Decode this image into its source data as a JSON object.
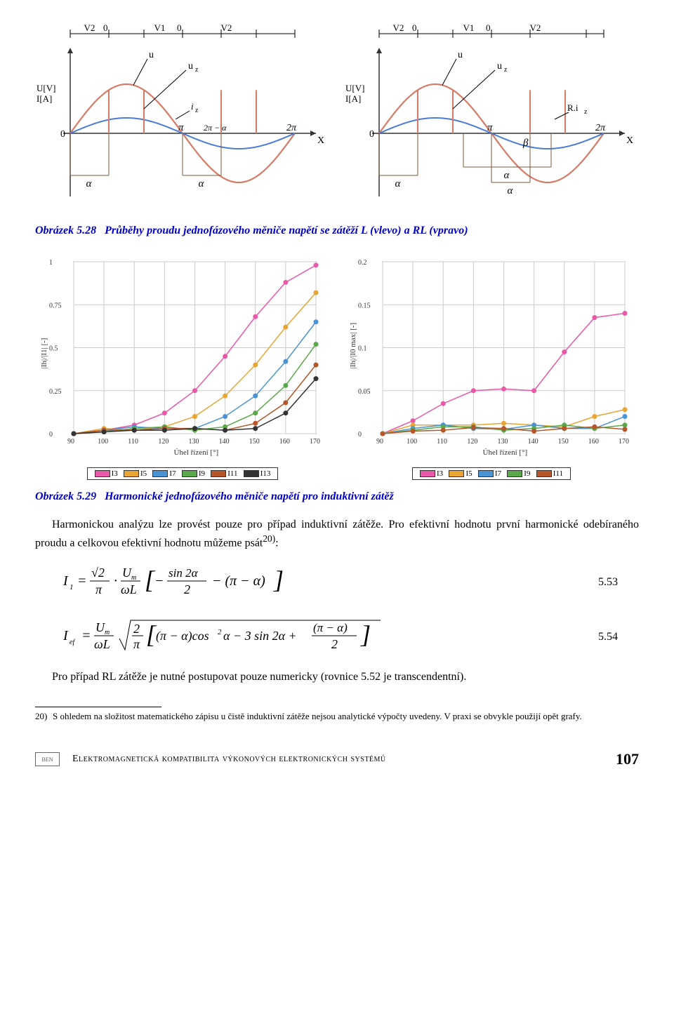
{
  "waveform": {
    "axis_x": "X",
    "axis_y": "U[V]\nI[A]",
    "zero": "0",
    "u_label": "u",
    "uz_label": "u_z",
    "iz_label": "i_z",
    "Riz_label": "R.i_z",
    "alpha": "α",
    "beta": "β",
    "pi": "π",
    "two_pi": "2π",
    "two_pi_minus_alpha": "2π − α",
    "V1": "V1",
    "V2": "V2",
    "line_voltage_color": "#d77b66",
    "line_current_color": "#4a7bd6",
    "axis_color": "#333333",
    "bracket_color": "#7a5a3a"
  },
  "caption528": {
    "label": "Obrázek 5.28",
    "text": "Průběhy proudu jednofázového měniče napětí se zátěží L (vlevo) a RL (vpravo)"
  },
  "harmonic_chart": {
    "type": "line-scatter",
    "xlabel": "Úhel řízení [°]",
    "ylabel_left": "|Ih|/|I1| [-]",
    "ylabel_right": "|Ih|/|I0 max| [-]",
    "xlim": [
      90,
      170
    ],
    "xticks": [
      90,
      100,
      110,
      120,
      130,
      140,
      150,
      160,
      170
    ],
    "left": {
      "ylim": [
        0,
        1
      ],
      "yticks": [
        0,
        0.25,
        0.5,
        0.75,
        1
      ]
    },
    "right": {
      "ylim": [
        0,
        0.2
      ],
      "yticks": [
        0,
        0.05,
        0.1,
        0.15,
        0.2
      ]
    },
    "series_colors": {
      "I3": "#e85aa8",
      "I5": "#e8a534",
      "I7": "#4a94d6",
      "I9": "#5aa84a",
      "I11": "#b5572a",
      "I13": "#333333"
    },
    "legend_left": [
      "I3",
      "I5",
      "I7",
      "I9",
      "I11",
      "I13"
    ],
    "legend_right": [
      "I3",
      "I5",
      "I7",
      "I9",
      "I11"
    ],
    "grid_color": "#cccccc",
    "background": "#ffffff",
    "left_data": {
      "x": [
        90,
        100,
        110,
        120,
        130,
        140,
        150,
        160,
        170
      ],
      "I3": [
        0.0,
        0.02,
        0.05,
        0.12,
        0.25,
        0.45,
        0.68,
        0.88,
        0.98
      ],
      "I5": [
        0.0,
        0.03,
        0.02,
        0.04,
        0.1,
        0.22,
        0.4,
        0.62,
        0.82
      ],
      "I7": [
        0.0,
        0.02,
        0.04,
        0.03,
        0.03,
        0.1,
        0.22,
        0.42,
        0.65
      ],
      "I9": [
        0.0,
        0.01,
        0.03,
        0.04,
        0.02,
        0.04,
        0.12,
        0.28,
        0.52
      ],
      "I11": [
        0.0,
        0.02,
        0.02,
        0.03,
        0.03,
        0.02,
        0.06,
        0.18,
        0.4
      ],
      "I13": [
        0.0,
        0.01,
        0.02,
        0.02,
        0.03,
        0.02,
        0.03,
        0.12,
        0.32
      ]
    },
    "right_data": {
      "x": [
        90,
        100,
        110,
        120,
        130,
        140,
        150,
        160,
        170
      ],
      "I3": [
        0.0,
        0.015,
        0.035,
        0.05,
        0.052,
        0.05,
        0.095,
        0.135,
        0.14
      ],
      "I5": [
        0.0,
        0.01,
        0.01,
        0.01,
        0.012,
        0.01,
        0.008,
        0.02,
        0.028
      ],
      "I7": [
        0.0,
        0.006,
        0.01,
        0.006,
        0.005,
        0.01,
        0.006,
        0.006,
        0.02
      ],
      "I9": [
        0.0,
        0.004,
        0.008,
        0.008,
        0.004,
        0.006,
        0.01,
        0.006,
        0.01
      ],
      "I11": [
        0.0,
        0.003,
        0.004,
        0.007,
        0.006,
        0.003,
        0.006,
        0.008,
        0.005
      ]
    }
  },
  "caption529": {
    "label": "Obrázek 5.29",
    "text": "Harmonické jednofázového měniče napětí pro induktivní zátěž"
  },
  "body1": "Harmonickou analýzu lze provést pouze pro případ induktivní zátěže. Pro efektivní hodnotu první harmonické odebíraného proudu a celkovou efektivní hodnotu můžeme psát",
  "body1_sup": "20)",
  "body1_suffix": ":",
  "eq553": {
    "text": "I₁ = (√2/π) · (Uₘ/ωL) · [ − (sin 2α)/2 − (π − α) ]",
    "num": "5.53"
  },
  "eq554": {
    "text": "I_ef = (Uₘ/ωL) · √( (2/π) · [ (π−α)cos²α − 3 sin 2α + (π−α)/2 ] )",
    "num": "5.54"
  },
  "body2": "Pro případ RL zátěže je nutné postupovat pouze numericky (rovnice 5.52 je transcendentní).",
  "footnote": {
    "num": "20)",
    "text": "S ohledem na složitost matematického zápisu u čistě induktivní zátěže nejsou analytické výpočty uvedeny. V praxi se obvykle použijí opět grafy."
  },
  "footer": {
    "logo": "BEN",
    "title": "Elektromagnetická kompatibilita výkonových elektronických systémů",
    "page": "107"
  }
}
